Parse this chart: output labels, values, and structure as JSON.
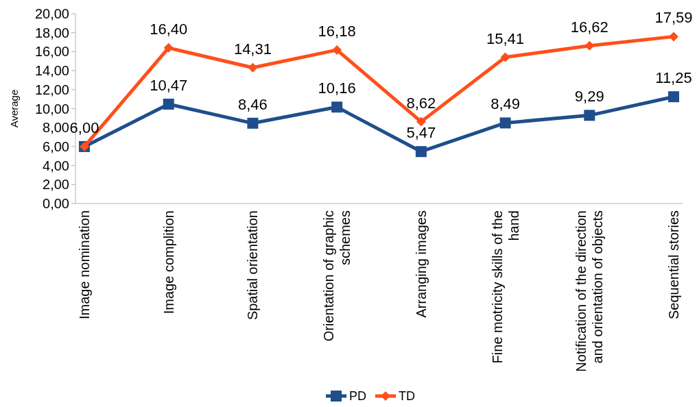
{
  "chart_data": {
    "type": "line",
    "ylabel": "Average",
    "categories": [
      "Image nomination",
      "Image complition",
      "Spatial orientation",
      "Orientation of graphic schemes",
      "Arranging images",
      "Fine motricity skills of the hand",
      "Notification of the direction and orientation of objects",
      "Sequential stories"
    ],
    "series": [
      {
        "name": "PD",
        "color": "#1f4e8c",
        "marker": "square",
        "values": [
          6.0,
          10.47,
          8.46,
          10.16,
          5.47,
          8.49,
          9.29,
          11.25
        ],
        "value_labels": [
          "6,00",
          "10,47",
          "8,46",
          "10,16",
          "5,47",
          "8,49",
          "9,29",
          "11,25"
        ]
      },
      {
        "name": "TD",
        "color": "#ff4f1a",
        "marker": "diamond",
        "values": [
          6.0,
          16.4,
          14.31,
          16.18,
          8.62,
          15.41,
          16.62,
          17.59
        ],
        "value_labels": [
          null,
          "16,40",
          "14,31",
          "16,18",
          "8,62",
          "15,41",
          "16,62",
          "17,59"
        ]
      }
    ],
    "ylim": [
      0,
      20
    ],
    "yticks": [
      {
        "value": 0,
        "label": "0,00"
      },
      {
        "value": 2,
        "label": "2,00"
      },
      {
        "value": 4,
        "label": "4,00"
      },
      {
        "value": 6,
        "label": "6,00"
      },
      {
        "value": 8,
        "label": "8,00"
      },
      {
        "value": 10,
        "label": "10,00"
      },
      {
        "value": 12,
        "label": "12,00"
      },
      {
        "value": 14,
        "label": "14,00"
      },
      {
        "value": 16,
        "label": "16,00"
      },
      {
        "value": 18,
        "label": "18,00"
      },
      {
        "value": 20,
        "label": "20,00"
      }
    ],
    "grid": false,
    "legend": "bottom",
    "line_style": "solid"
  }
}
